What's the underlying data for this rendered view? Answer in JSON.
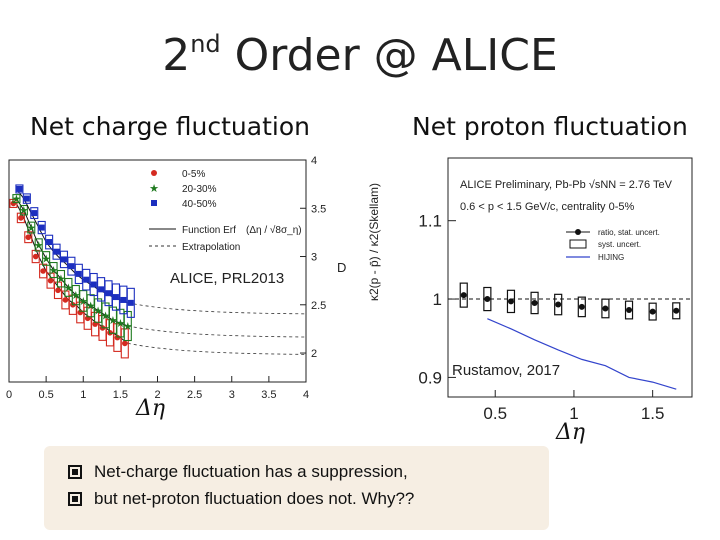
{
  "slide": {
    "title_main": "2",
    "title_sup": "nd",
    "title_rest": " Order @ ALICE",
    "left_subtitle": "Net charge fluctuation",
    "right_subtitle": "Net proton fluctuation",
    "left_reference": "ALICE, PRL2013",
    "right_reference": "Rustamov, 2017",
    "left_xlabel": "Δη",
    "right_xlabel": "Δη",
    "bullets": [
      "Net-charge fluctuation has a suppression,",
      "but net-proton fluctuation does not. Why??"
    ]
  },
  "chart_data": [
    {
      "type": "scatter",
      "name": "net-charge",
      "xlim": [
        0,
        4
      ],
      "ylim": [
        1.7,
        4.0
      ],
      "x_ticks": [
        "0",
        "0.5",
        "1",
        "1.5",
        "2",
        "2.5",
        "3",
        "3.5",
        "4"
      ],
      "y_ticks_right": [
        "2",
        "2.5",
        "3",
        "3.5",
        "4"
      ],
      "ylabel": "D",
      "legend": [
        "0-5%",
        "20-30%",
        "40-50%",
        "Function Erf",
        "Extrapolation"
      ],
      "legend_formula": "(Δη / √8σ_η)",
      "series": [
        {
          "name": "0-5%",
          "color": "#d42a20",
          "marker": "circle",
          "x": [
            0.1,
            0.2,
            0.3,
            0.4,
            0.5,
            0.6,
            0.7,
            0.8,
            0.9,
            1.0,
            1.1,
            1.2,
            1.3,
            1.4,
            1.5,
            1.6
          ],
          "y": [
            3.55,
            3.4,
            3.2,
            3.0,
            2.85,
            2.75,
            2.65,
            2.55,
            2.5,
            2.42,
            2.36,
            2.3,
            2.26,
            2.21,
            2.16,
            2.1
          ]
        },
        {
          "name": "20-30%",
          "color": "#1f7a1f",
          "marker": "star",
          "x": [
            0.1,
            0.2,
            0.3,
            0.4,
            0.5,
            0.6,
            0.7,
            0.8,
            0.9,
            1.0,
            1.1,
            1.2,
            1.3,
            1.4,
            1.5,
            1.6
          ],
          "y": [
            3.6,
            3.48,
            3.3,
            3.12,
            2.98,
            2.86,
            2.77,
            2.68,
            2.6,
            2.54,
            2.49,
            2.44,
            2.39,
            2.34,
            2.31,
            2.28
          ]
        },
        {
          "name": "40-50%",
          "color": "#1c2fbf",
          "marker": "square",
          "x": [
            0.1,
            0.2,
            0.3,
            0.4,
            0.5,
            0.6,
            0.7,
            0.8,
            0.9,
            1.0,
            1.1,
            1.2,
            1.3,
            1.4,
            1.5,
            1.6
          ],
          "y": [
            3.7,
            3.6,
            3.45,
            3.3,
            3.15,
            3.05,
            2.97,
            2.9,
            2.82,
            2.76,
            2.71,
            2.66,
            2.62,
            2.58,
            2.55,
            2.52
          ]
        }
      ]
    },
    {
      "type": "scatter",
      "name": "net-proton",
      "xlim": [
        0.2,
        1.75
      ],
      "ylim": [
        0.875,
        1.18
      ],
      "x_ticks": [
        "0.5",
        "1",
        "1.5"
      ],
      "y_ticks": [
        "0.9",
        "1",
        "1.1"
      ],
      "ylabel": "κ2(p - p̄) / κ2(Skellam)",
      "header": "ALICE Preliminary, Pb-Pb √sNN = 2.76 TeV",
      "subheader": "0.6 < p < 1.5 GeV/c, centrality 0-5%",
      "legend": [
        "ratio, stat. uncert.",
        "syst. uncert.",
        "HIJING"
      ],
      "series": [
        {
          "name": "ratio, stat. uncert.",
          "color": "#000000",
          "x": [
            0.3,
            0.45,
            0.6,
            0.75,
            0.9,
            1.05,
            1.2,
            1.35,
            1.5,
            1.65
          ],
          "y": [
            1.005,
            1.0,
            0.997,
            0.995,
            0.993,
            0.99,
            0.988,
            0.986,
            0.984,
            0.985
          ]
        },
        {
          "name": "HIJING",
          "color": "#3344cc",
          "x": [
            0.45,
            0.6,
            0.75,
            0.9,
            1.05,
            1.2,
            1.35,
            1.5,
            1.65
          ],
          "y": [
            0.975,
            0.962,
            0.948,
            0.935,
            0.923,
            0.915,
            0.9,
            0.894,
            0.885
          ]
        }
      ],
      "reference_line": 1.0
    }
  ]
}
